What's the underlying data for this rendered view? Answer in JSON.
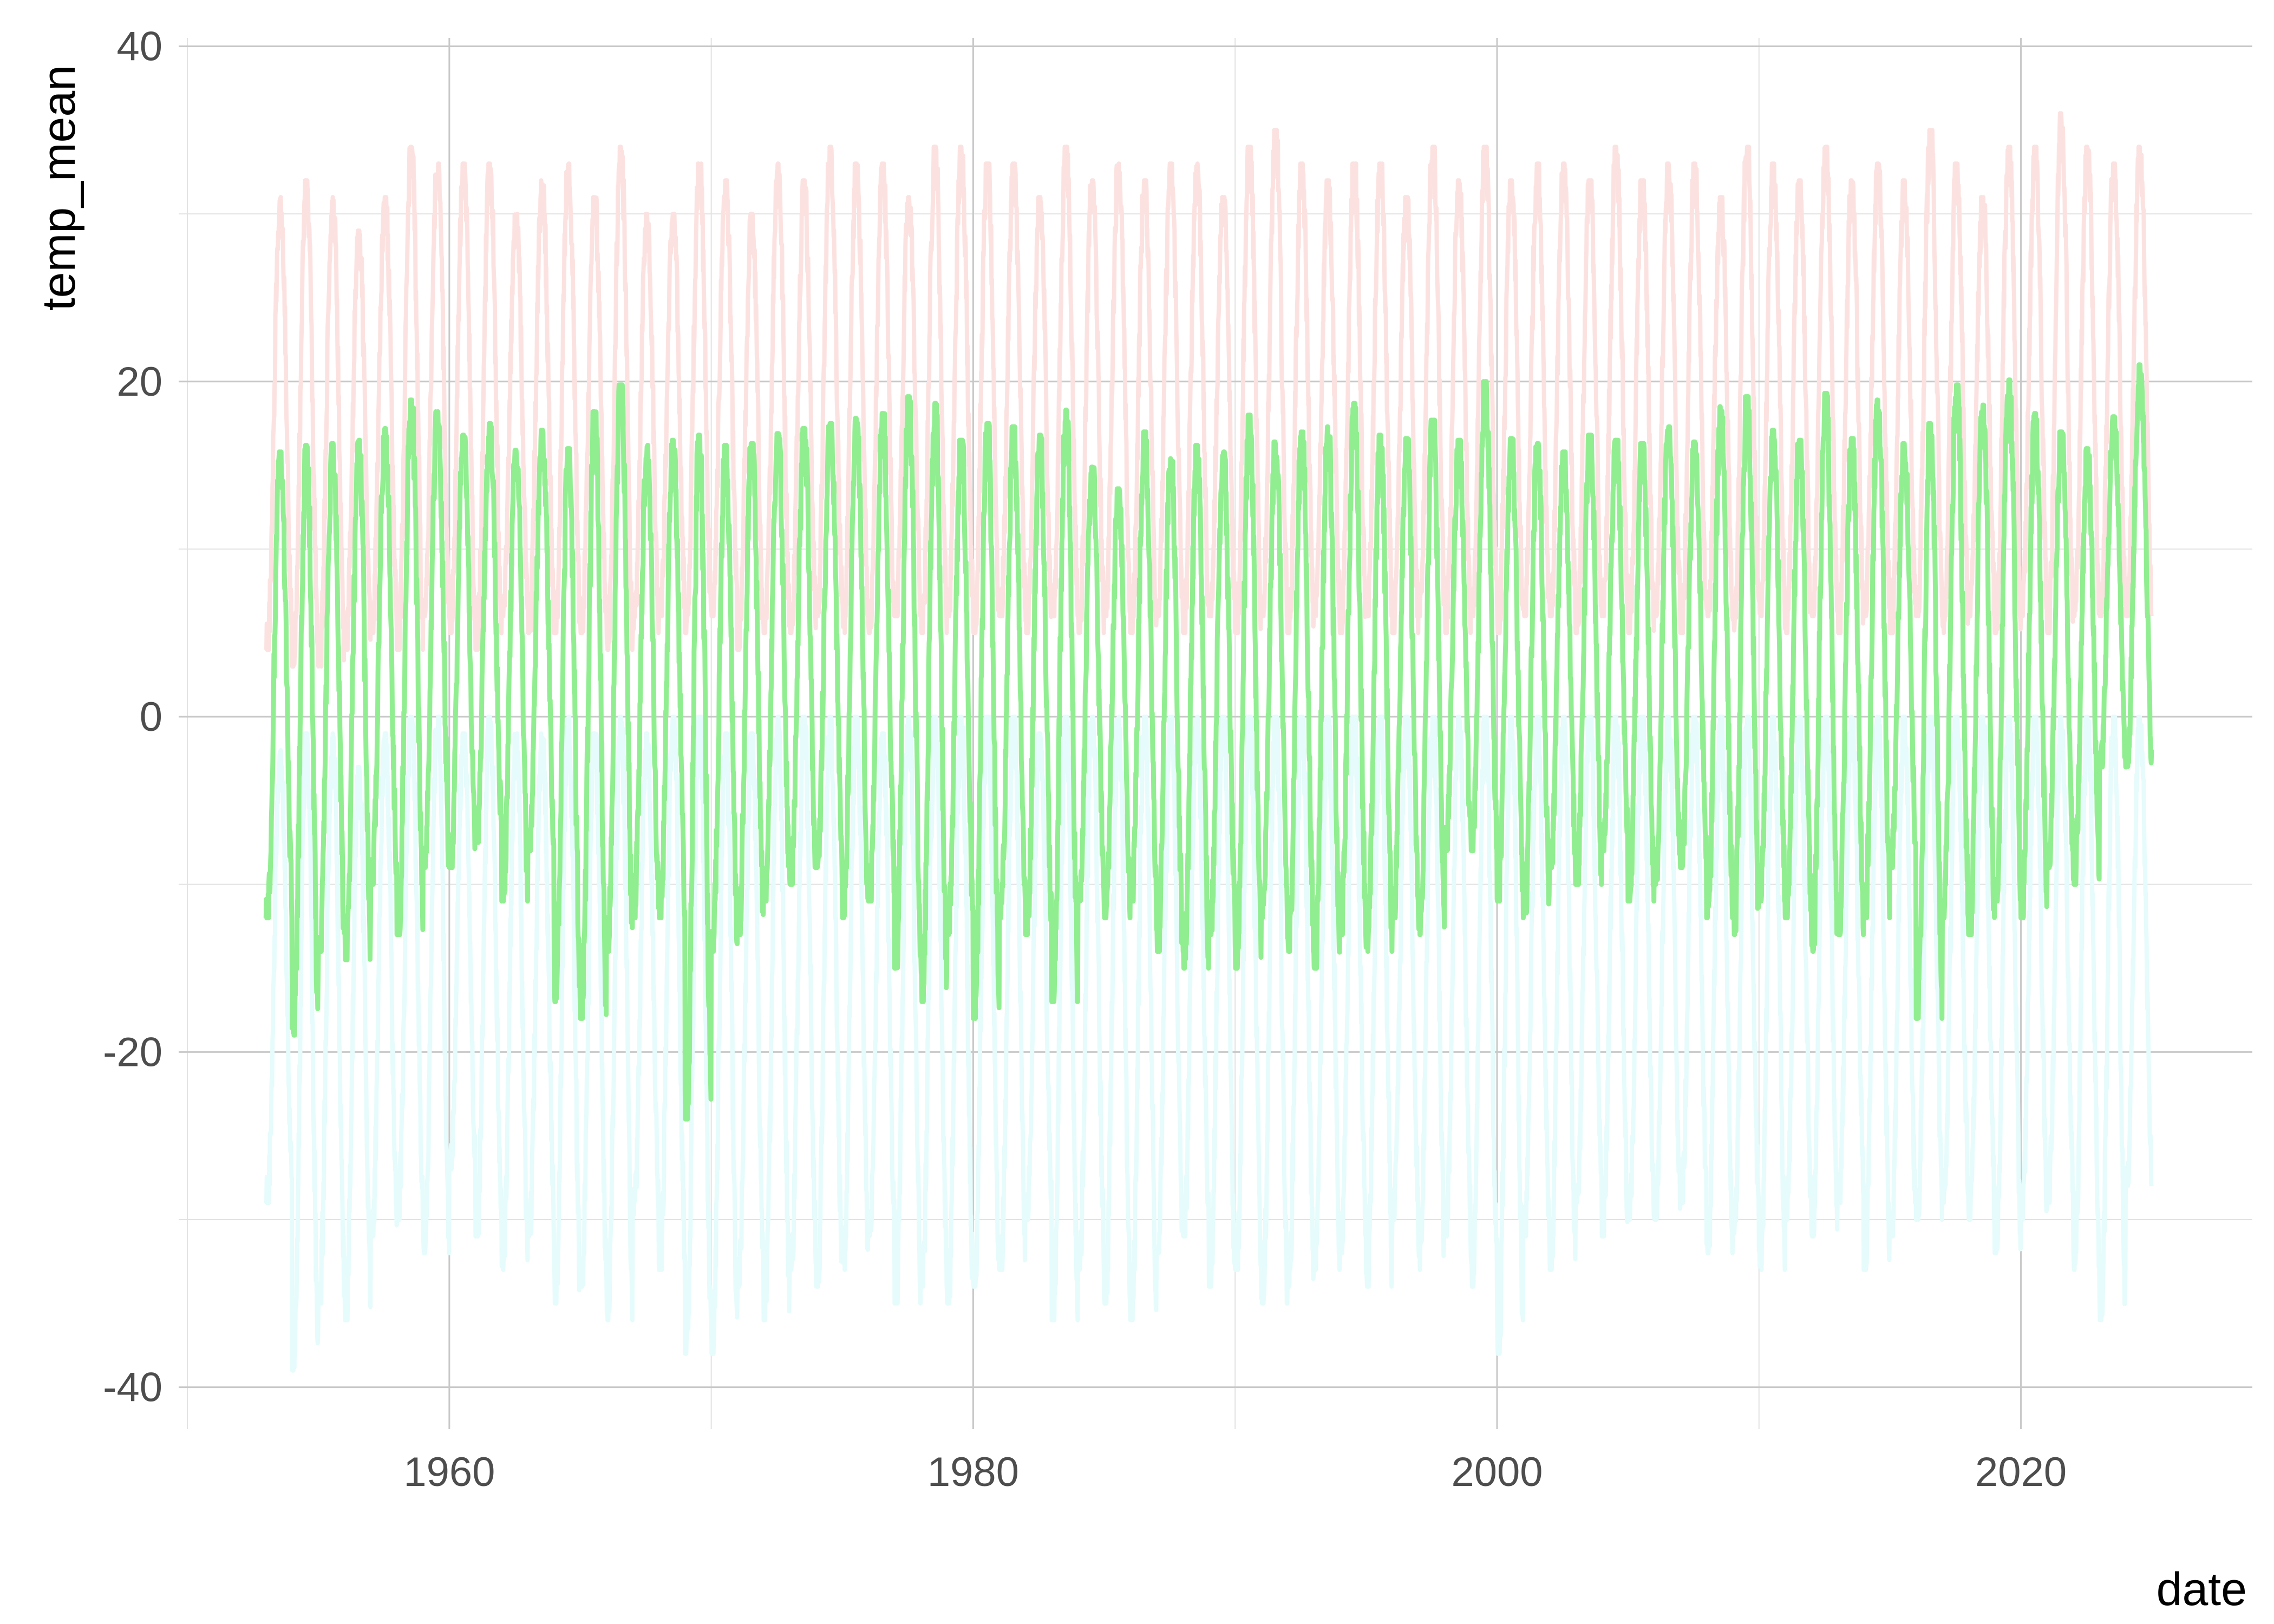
{
  "chart_data": {
    "type": "line",
    "title": "",
    "xlabel": "date",
    "ylabel": "temp_mean",
    "xlim": [
      "1949-09-01",
      "2028-11-01"
    ],
    "ylim": [
      -42.5,
      40.5
    ],
    "x_ticks": [
      "1960",
      "1980",
      "2000",
      "2020"
    ],
    "x_tick_values": [
      "1960-01-01",
      "1980-01-01",
      "2000-01-01",
      "2020-01-01"
    ],
    "y_ticks": [
      "40",
      "20",
      "0",
      "-20",
      "-40"
    ],
    "y_tick_values": [
      40,
      20,
      0,
      -20,
      -40
    ],
    "grid": true,
    "legend": "none",
    "series": [
      {
        "role": "band-upper",
        "color": "#fbe2e0",
        "seasonal_cycle": true,
        "date_range": [
          "1953-01-01",
          "2024-12-31"
        ],
        "annual_peak_approx": [
          31,
          32,
          31,
          29,
          31,
          34,
          33,
          33,
          33,
          30,
          32,
          33,
          31,
          34,
          30,
          30,
          33,
          32,
          30,
          33,
          32,
          34,
          33,
          33,
          31,
          34,
          34,
          33,
          33,
          31,
          34,
          32,
          33,
          32,
          33,
          33,
          31,
          34,
          35,
          33,
          32,
          33,
          33,
          31,
          34,
          32,
          34,
          32,
          33,
          33,
          32,
          34,
          32,
          33,
          33,
          31,
          34,
          33,
          32,
          34,
          32,
          33,
          32,
          35,
          33,
          31,
          34,
          34,
          36,
          34,
          33,
          34
        ],
        "annual_trough_approx": [
          4,
          3,
          3,
          4,
          5,
          4,
          6,
          5,
          4,
          6,
          5,
          5,
          5,
          4,
          5,
          6,
          5,
          6,
          4,
          5,
          5,
          6,
          5,
          5,
          6,
          5,
          6,
          5,
          6,
          5,
          6,
          5,
          6,
          5,
          6,
          5,
          6,
          5,
          6,
          5,
          6,
          5,
          6,
          5,
          6,
          5,
          6,
          5,
          6,
          6,
          5,
          6,
          5,
          6,
          5,
          6,
          5,
          6,
          5,
          6,
          5,
          6,
          5,
          6,
          5,
          6,
          5,
          6,
          5,
          6,
          6,
          6
        ]
      },
      {
        "role": "band-lower",
        "color": "#e6fbfb",
        "seasonal_cycle": true,
        "date_range": [
          "1953-01-01",
          "2024-12-31"
        ],
        "annual_peak_approx": [
          -2,
          -1,
          -1,
          -3,
          -1,
          0,
          0,
          -1,
          0,
          -1,
          -1,
          0,
          -1,
          0,
          -1,
          0,
          0,
          -1,
          -1,
          0,
          0,
          0,
          0,
          -1,
          0,
          0,
          0,
          0,
          0,
          -1,
          0,
          0,
          0,
          0,
          0,
          0,
          0,
          0,
          0,
          0,
          0,
          0,
          0,
          0,
          0,
          0,
          0,
          0,
          0,
          0,
          0,
          0,
          0,
          0,
          0,
          0,
          0,
          0,
          0,
          0,
          0,
          0,
          0,
          0,
          0,
          0,
          0,
          0,
          0,
          0,
          0,
          0
        ],
        "annual_trough_approx": [
          -29,
          -39,
          -35,
          -36,
          -31,
          -30,
          -32,
          -27,
          -31,
          -33,
          -31,
          -35,
          -34,
          -36,
          -30,
          -33,
          -38,
          -38,
          -34,
          -36,
          -33,
          -34,
          -33,
          -31,
          -35,
          -34,
          -35,
          -34,
          -33,
          -30,
          -36,
          -33,
          -35,
          -36,
          -32,
          -31,
          -34,
          -33,
          -35,
          -34,
          -33,
          -32,
          -34,
          -30,
          -33,
          -31,
          -34,
          -38,
          -31,
          -33,
          -29,
          -31,
          -30,
          -30,
          -29,
          -32,
          -31,
          -33,
          -30,
          -31,
          -29,
          -33,
          -31,
          -30,
          -29,
          -30,
          -32,
          -30,
          -29,
          -33,
          -36,
          -28
        ]
      },
      {
        "role": "temp_mean",
        "color": "#90ee90",
        "seasonal_cycle": true,
        "date_range": [
          "1953-01-01",
          "2024-12-31"
        ],
        "annual_peak_approx": [
          15.8,
          16.2,
          16.3,
          16.5,
          17.2,
          18.9,
          18.2,
          16.8,
          17.5,
          15.9,
          17.1,
          16.0,
          18.2,
          19.8,
          16.2,
          16.5,
          16.8,
          16.2,
          16.3,
          16.9,
          17.2,
          17.5,
          17.8,
          18.1,
          19.1,
          18.7,
          16.5,
          17.5,
          17.3,
          16.8,
          18.3,
          14.9,
          13.6,
          17.0,
          15.4,
          16.2,
          15.8,
          18.0,
          16.4,
          17.0,
          17.3,
          18.7,
          16.8,
          16.6,
          17.7,
          16.5,
          20.0,
          16.6,
          16.3,
          15.8,
          16.8,
          16.5,
          16.3,
          17.3,
          16.4,
          18.5,
          19.1,
          17.1,
          16.5,
          19.3,
          16.6,
          18.9,
          16.3,
          17.5,
          19.8,
          18.6,
          20.1,
          18.1,
          17.0,
          16.0,
          17.9,
          21.0
        ],
        "annual_trough_approx": [
          -12,
          -19,
          -14,
          -14.5,
          -10,
          -13,
          -9.5,
          -9,
          -7.5,
          -11,
          -8,
          -17,
          -18,
          -14,
          -12,
          -12,
          -24,
          -14,
          -13,
          -11,
          -10,
          -9,
          -12,
          -11,
          -15,
          -17,
          -13,
          -18,
          -12,
          -13,
          -17,
          -11,
          -12,
          -11,
          -14,
          -15,
          -13,
          -15,
          -12,
          -14,
          -15,
          -13,
          -14,
          -12,
          -13,
          -8,
          -8,
          -11,
          -12,
          -9,
          -10,
          -8,
          -11,
          -10,
          -9,
          -12,
          -13,
          -11,
          -12,
          -14,
          -13,
          -12,
          -9,
          -18,
          -12,
          -13,
          -11,
          -12,
          -9,
          -10,
          -3
        ]
      }
    ]
  }
}
